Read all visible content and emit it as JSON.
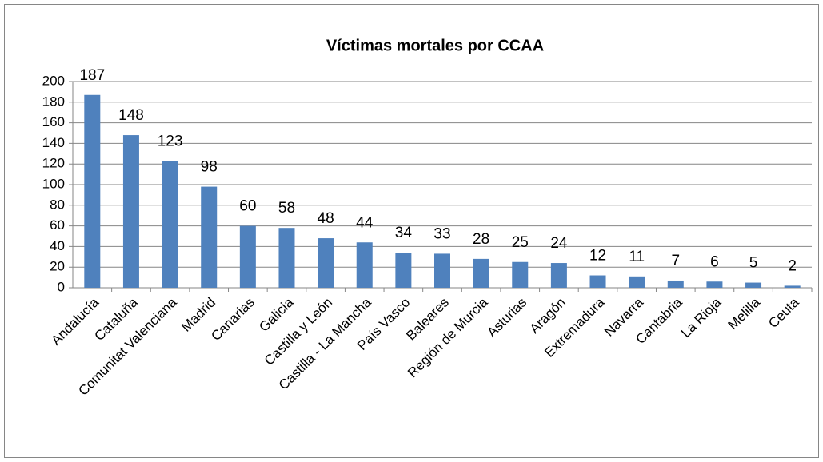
{
  "chart_data": {
    "type": "bar",
    "title": "Víctimas mortales por CCAA",
    "categories": [
      "Andalucía",
      "Cataluña",
      "Comunitat Valenciana",
      "Madrid",
      "Canarias",
      "Galicia",
      "Castilla y León",
      "Castilla - La Mancha",
      "País Vasco",
      "Baleares",
      "Región de Murcia",
      "Asturias",
      "Aragón",
      "Extremadura",
      "Navarra",
      "Cantabria",
      "La Rioja",
      "Melilla",
      "Ceuta"
    ],
    "values": [
      187,
      148,
      123,
      98,
      60,
      58,
      48,
      44,
      34,
      33,
      28,
      25,
      24,
      12,
      11,
      7,
      6,
      5,
      2
    ],
    "color": "#4f81bd",
    "ylim": [
      0,
      200
    ],
    "yticks": [
      0,
      20,
      40,
      60,
      80,
      100,
      120,
      140,
      160,
      180,
      200
    ],
    "grid": true
  }
}
